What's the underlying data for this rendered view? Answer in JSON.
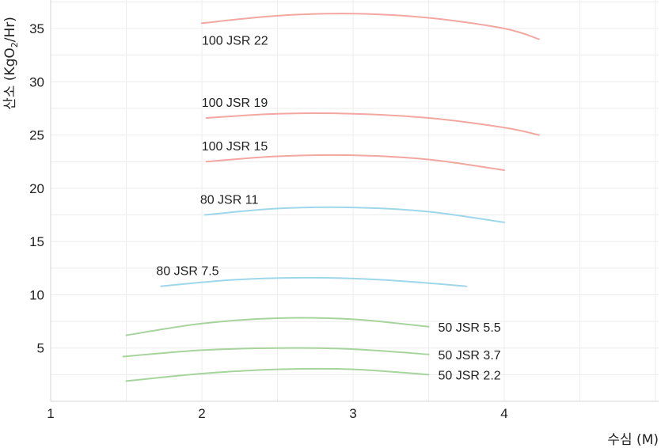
{
  "chart_data": {
    "type": "line",
    "title": "",
    "xlabel": "수심 (M)",
    "ylabel": "산소 (KgO",
    "ylabel_sub": "2",
    "ylabel_tail": "/Hr)",
    "xlim": [
      1,
      5
    ],
    "ylim": [
      0,
      37.5
    ],
    "xticks": [
      1,
      2,
      3,
      4
    ],
    "yticks": [
      5,
      10,
      15,
      20,
      25,
      30,
      35
    ],
    "grid": true,
    "colors": {
      "red": "#f2a7a0",
      "blue": "#9fd7ea",
      "green": "#a6d49c"
    },
    "series": [
      {
        "name": "100 JSR 22",
        "color": "red",
        "label_anchor": "start",
        "x": [
          2.0,
          2.5,
          3.0,
          3.5,
          4.0,
          4.23
        ],
        "y": [
          35.5,
          36.2,
          36.4,
          36.0,
          35.0,
          34.0
        ]
      },
      {
        "name": "100 JSR 19",
        "color": "red",
        "label_anchor": "start",
        "x": [
          2.03,
          2.5,
          3.0,
          3.5,
          4.0,
          4.23
        ],
        "y": [
          26.6,
          27.0,
          27.0,
          26.6,
          25.7,
          25.0
        ]
      },
      {
        "name": "100 JSR 15",
        "color": "red",
        "label_anchor": "start",
        "x": [
          2.03,
          2.5,
          3.0,
          3.5,
          4.0
        ],
        "y": [
          22.5,
          23.0,
          23.1,
          22.7,
          21.7
        ]
      },
      {
        "name": "80 JSR 11",
        "color": "blue",
        "label_anchor": "start",
        "x": [
          2.02,
          2.5,
          3.0,
          3.5,
          4.0
        ],
        "y": [
          17.5,
          18.1,
          18.2,
          17.8,
          16.8
        ]
      },
      {
        "name": "80 JSR 7.5",
        "color": "blue",
        "label_anchor": "start",
        "x": [
          1.73,
          2.2,
          2.7,
          3.2,
          3.75
        ],
        "y": [
          10.8,
          11.4,
          11.6,
          11.4,
          10.8
        ]
      },
      {
        "name": "50 JSR 5.5",
        "color": "green",
        "label_anchor": "end",
        "x": [
          1.5,
          2.0,
          2.5,
          3.0,
          3.5
        ],
        "y": [
          6.2,
          7.3,
          7.8,
          7.7,
          7.0
        ]
      },
      {
        "name": "50 JSR 3.7",
        "color": "green",
        "label_anchor": "end",
        "x": [
          1.48,
          2.0,
          2.5,
          3.0,
          3.5
        ],
        "y": [
          4.2,
          4.8,
          5.0,
          4.9,
          4.4
        ]
      },
      {
        "name": "50 JSR 2.2",
        "color": "green",
        "label_anchor": "end",
        "x": [
          1.5,
          2.0,
          2.5,
          3.0,
          3.5
        ],
        "y": [
          1.9,
          2.6,
          3.0,
          3.0,
          2.5
        ]
      }
    ]
  }
}
